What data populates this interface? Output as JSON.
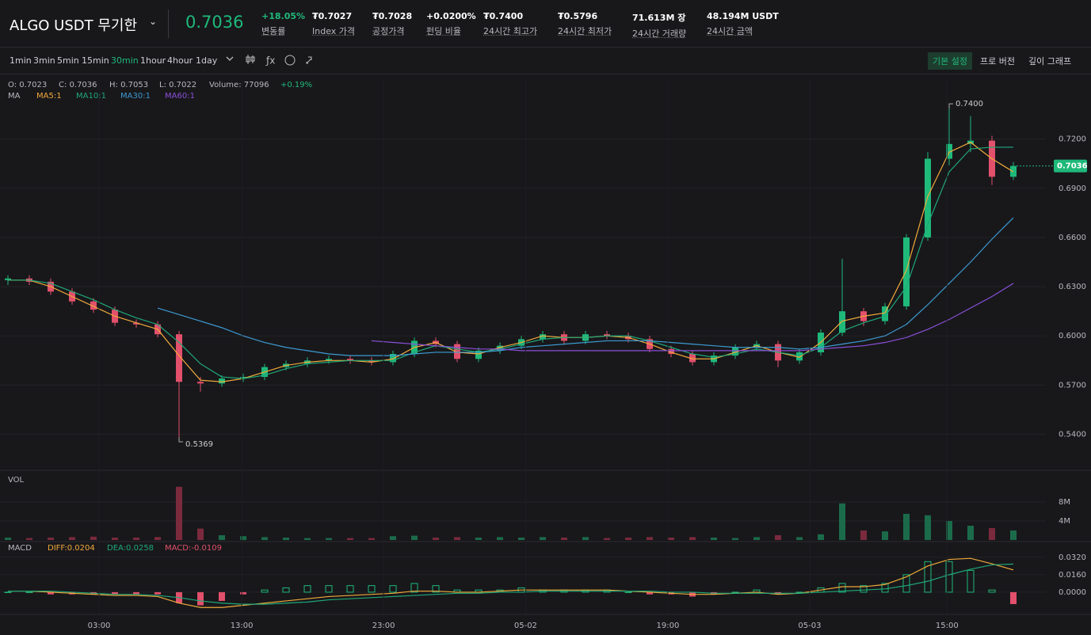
{
  "header": {
    "title": "ALGO USDT 무기한",
    "price": "0.7036",
    "stats": [
      {
        "value": "+18.05%",
        "label": "변동률"
      },
      {
        "value": "₮0.7027",
        "label": "Index 가격"
      },
      {
        "value": "₮0.7028",
        "label": "공정가격"
      },
      {
        "value": "+0.0200%",
        "label": "펀딩 비율"
      },
      {
        "value": "₮0.7400",
        "label": "24시간 최고가"
      },
      {
        "value": "₮0.5796",
        "label": "24시간 최저가"
      },
      {
        "value": "71.613M 장",
        "label": "24시간 거래량"
      },
      {
        "value": "48.194M USDT",
        "label": "24시간 금액"
      }
    ]
  },
  "toolbar": {
    "intervals": [
      "1min",
      "3min",
      "5min",
      "15min",
      "30min",
      "1hour",
      "4hour",
      "1day"
    ],
    "active_interval": 4,
    "views": [
      "기본 설정",
      "프로 버전",
      "깊이 그래프"
    ],
    "active_view": 0
  },
  "chart_data": [
    {
      "type": "candlestick",
      "info": [
        "O: 0.7023",
        "C: 0.7036",
        "H: 0.7053",
        "L: 0.7022",
        "Volume: 77096",
        "+0.19%"
      ],
      "ma_title": "MA",
      "up_color": "#1fb97a",
      "down_color": "#e2506b",
      "open": [
        0.634,
        0.635,
        0.633,
        0.627,
        0.621,
        0.616,
        0.608,
        0.607,
        0.601,
        0.572,
        0.571,
        0.574,
        0.575,
        0.581,
        0.583,
        0.585,
        0.586,
        0.585,
        0.584,
        0.589,
        0.597,
        0.595,
        0.586,
        0.591,
        0.594,
        0.598,
        0.601,
        0.597,
        0.601,
        0.6,
        0.598,
        0.592,
        0.589,
        0.584,
        0.588,
        0.593,
        0.595,
        0.585,
        0.59,
        0.602,
        0.615,
        0.609,
        0.618,
        0.66,
        0.708,
        0.717,
        0.719,
        0.697
      ],
      "high": [
        0.637,
        0.637,
        0.635,
        0.629,
        0.623,
        0.618,
        0.61,
        0.609,
        0.603,
        0.575,
        0.576,
        0.577,
        0.583,
        0.585,
        0.587,
        0.588,
        0.588,
        0.587,
        0.591,
        0.599,
        0.599,
        0.597,
        0.593,
        0.596,
        0.6,
        0.603,
        0.603,
        0.603,
        0.603,
        0.602,
        0.6,
        0.594,
        0.591,
        0.59,
        0.595,
        0.597,
        0.597,
        0.592,
        0.604,
        0.647,
        0.617,
        0.62,
        0.662,
        0.712,
        0.74,
        0.734,
        0.722,
        0.706
      ],
      "low": [
        0.631,
        0.631,
        0.625,
        0.619,
        0.614,
        0.606,
        0.605,
        0.599,
        0.5369,
        0.566,
        0.569,
        0.572,
        0.573,
        0.579,
        0.581,
        0.583,
        0.583,
        0.582,
        0.582,
        0.587,
        0.593,
        0.584,
        0.584,
        0.589,
        0.592,
        0.596,
        0.595,
        0.595,
        0.598,
        0.596,
        0.59,
        0.587,
        0.582,
        0.582,
        0.586,
        0.591,
        0.581,
        0.583,
        0.588,
        0.6,
        0.606,
        0.607,
        0.616,
        0.658,
        0.704,
        0.712,
        0.692,
        0.695
      ],
      "close": [
        0.635,
        0.633,
        0.627,
        0.621,
        0.616,
        0.608,
        0.607,
        0.601,
        0.572,
        0.571,
        0.574,
        0.575,
        0.581,
        0.583,
        0.585,
        0.586,
        0.585,
        0.584,
        0.589,
        0.597,
        0.595,
        0.586,
        0.591,
        0.594,
        0.598,
        0.601,
        0.597,
        0.601,
        0.6,
        0.598,
        0.592,
        0.589,
        0.584,
        0.588,
        0.593,
        0.595,
        0.585,
        0.59,
        0.602,
        0.615,
        0.609,
        0.618,
        0.66,
        0.708,
        0.717,
        0.719,
        0.697,
        0.7036
      ],
      "series": [
        {
          "name": "MA5:1",
          "color": "#f0a93a",
          "values": [
            0.634,
            0.634,
            0.63,
            0.624,
            0.618,
            0.612,
            0.608,
            0.604,
            0.588,
            0.573,
            0.572,
            0.574,
            0.578,
            0.582,
            0.584,
            0.585,
            0.585,
            0.584,
            0.586,
            0.593,
            0.596,
            0.59,
            0.589,
            0.593,
            0.596,
            0.6,
            0.599,
            0.599,
            0.6,
            0.599,
            0.595,
            0.59,
            0.586,
            0.586,
            0.59,
            0.594,
            0.59,
            0.587,
            0.596,
            0.609,
            0.612,
            0.614,
            0.64,
            0.685,
            0.712,
            0.718,
            0.708,
            0.7
          ]
        },
        {
          "name": "MA10:1",
          "color": "#1fa878",
          "values": [
            0.634,
            0.634,
            0.632,
            0.627,
            0.622,
            0.616,
            0.611,
            0.607,
            0.596,
            0.583,
            0.575,
            0.574,
            0.576,
            0.58,
            0.583,
            0.584,
            0.585,
            0.585,
            0.585,
            0.59,
            0.594,
            0.592,
            0.59,
            0.592,
            0.595,
            0.598,
            0.599,
            0.599,
            0.6,
            0.6,
            0.597,
            0.593,
            0.589,
            0.587,
            0.589,
            0.592,
            0.59,
            0.588,
            0.593,
            0.603,
            0.608,
            0.612,
            0.63,
            0.668,
            0.7,
            0.714,
            0.715,
            0.715
          ]
        },
        {
          "name": "MA30:1",
          "color": "#3d9ad1",
          "values": [
            null,
            null,
            null,
            null,
            null,
            null,
            null,
            0.617,
            0.613,
            0.609,
            0.605,
            0.6,
            0.596,
            0.593,
            0.591,
            0.589,
            0.588,
            0.588,
            0.588,
            0.589,
            0.59,
            0.59,
            0.59,
            0.591,
            0.593,
            0.594,
            0.595,
            0.596,
            0.597,
            0.597,
            0.597,
            0.596,
            0.595,
            0.594,
            0.593,
            0.593,
            0.593,
            0.592,
            0.593,
            0.595,
            0.597,
            0.6,
            0.607,
            0.619,
            0.632,
            0.645,
            0.659,
            0.672
          ]
        },
        {
          "name": "MA60:1",
          "color": "#8a4fd8",
          "values": [
            null,
            null,
            null,
            null,
            null,
            null,
            null,
            null,
            null,
            null,
            null,
            null,
            null,
            null,
            null,
            null,
            null,
            0.597,
            0.596,
            0.595,
            0.594,
            0.593,
            0.592,
            0.592,
            0.591,
            0.591,
            0.591,
            0.591,
            0.591,
            0.591,
            0.591,
            0.591,
            0.591,
            0.591,
            0.591,
            0.591,
            0.591,
            0.591,
            0.592,
            0.593,
            0.594,
            0.596,
            0.599,
            0.604,
            0.61,
            0.617,
            0.624,
            0.632
          ]
        }
      ],
      "max_label": "0.7400",
      "min_label": "0.5369",
      "ylim": [
        0.52,
        0.756
      ],
      "yticks": [
        {
          "value": 0.72,
          "label": "0.7200"
        },
        {
          "value": 0.69,
          "label": "0.6900"
        },
        {
          "value": 0.66,
          "label": "0.6600"
        },
        {
          "value": 0.63,
          "label": "0.6300"
        },
        {
          "value": 0.6,
          "label": "0.6000"
        },
        {
          "value": 0.57,
          "label": "0.5700"
        },
        {
          "value": 0.54,
          "label": "0.5400"
        }
      ],
      "grid": true
    },
    {
      "type": "bar",
      "title": "VOL",
      "up_color": "#1b6b4b",
      "down_color": "#7b2a3d",
      "values": [
        500000,
        400000,
        500000,
        600000,
        700000,
        500000,
        500000,
        600000,
        11200000,
        2400000,
        1000000,
        800000,
        600000,
        500000,
        400000,
        400000,
        400000,
        400000,
        800000,
        900000,
        500000,
        600000,
        500000,
        600000,
        500000,
        600000,
        500000,
        600000,
        400000,
        500000,
        600000,
        500000,
        600000,
        500000,
        400000,
        600000,
        1000000,
        600000,
        1200000,
        7700000,
        2000000,
        1800000,
        5500000,
        5200000,
        4000000,
        3000000,
        2500000,
        2000000
      ],
      "ylim": [
        0,
        14000000
      ],
      "yticks": [
        {
          "value": 8000000,
          "label": "8M"
        },
        {
          "value": 4000000,
          "label": "4M"
        }
      ]
    },
    {
      "type": "macd",
      "title": "MACD",
      "series": [
        {
          "name": "DIFF:0.0204",
          "color": "#f0a93a",
          "values": [
            0.001,
            0.001,
            0,
            -0.001,
            -0.002,
            -0.003,
            -0.003,
            -0.004,
            -0.01,
            -0.014,
            -0.014,
            -0.012,
            -0.01,
            -0.008,
            -0.006,
            -0.004,
            -0.003,
            -0.002,
            -0.001,
            0.001,
            0.001,
            0,
            0,
            0.001,
            0.002,
            0.002,
            0.002,
            0.002,
            0.002,
            0.001,
            0,
            -0.001,
            -0.002,
            -0.002,
            -0.001,
            0,
            -0.002,
            -0.001,
            0.002,
            0.005,
            0.005,
            0.007,
            0.014,
            0.024,
            0.03,
            0.031,
            0.026,
            0.0204
          ]
        },
        {
          "name": "DEA:0.0258",
          "color": "#1fa878",
          "values": [
            0.001,
            0.001,
            0.001,
            0,
            -0.001,
            -0.002,
            -0.002,
            -0.003,
            -0.005,
            -0.008,
            -0.01,
            -0.011,
            -0.011,
            -0.01,
            -0.009,
            -0.007,
            -0.006,
            -0.005,
            -0.004,
            -0.003,
            -0.002,
            -0.001,
            -0.001,
            0,
            0,
            0.001,
            0.001,
            0.001,
            0.001,
            0.001,
            0.001,
            0,
            0,
            -0.001,
            -0.001,
            -0.001,
            -0.001,
            -0.001,
            0,
            0.001,
            0.002,
            0.003,
            0.006,
            0.01,
            0.016,
            0.021,
            0.025,
            0.0258
          ]
        }
      ],
      "histogram": {
        "name": "MACD:-0.0109",
        "up_color": "#1fb97a",
        "down_color": "#e2506b",
        "values": [
          0,
          0,
          -0.002,
          -0.002,
          -0.002,
          -0.002,
          -0.002,
          -0.002,
          -0.01,
          -0.012,
          -0.008,
          -0.002,
          0.002,
          0.004,
          0.006,
          0.006,
          0.006,
          0.006,
          0.006,
          0.008,
          0.006,
          0.002,
          0.002,
          0.002,
          0.004,
          0.002,
          0.002,
          0.002,
          0.002,
          0,
          -0.002,
          -0.002,
          -0.004,
          -0.002,
          0,
          0.002,
          -0.002,
          0,
          0.004,
          0.008,
          0.006,
          0.008,
          0.016,
          0.028,
          0.028,
          0.02,
          0.002,
          -0.0109
        ]
      },
      "ylim": [
        -0.016,
        0.042
      ],
      "yticks": [
        {
          "value": 0.032,
          "label": "0.0320"
        },
        {
          "value": 0.016,
          "label": "0.0160"
        },
        {
          "value": 0,
          "label": "0.0000"
        }
      ],
      "xticks": [
        {
          "value": 4.26,
          "label": "03:00"
        },
        {
          "value": 10.93,
          "label": "13:00"
        },
        {
          "value": 17.56,
          "label": "23:00"
        },
        {
          "value": 24.2,
          "label": "05-02"
        },
        {
          "value": 30.85,
          "label": "19:00"
        },
        {
          "value": 37.48,
          "label": "05-03"
        },
        {
          "value": 43.9,
          "label": "15:00"
        }
      ]
    }
  ]
}
